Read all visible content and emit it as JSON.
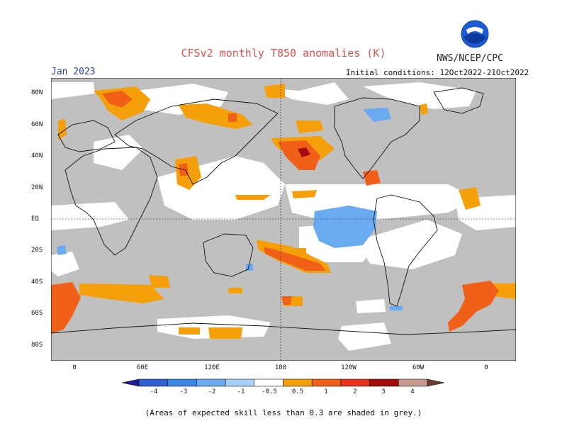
{
  "title": "CFSv2 monthly T850 anomalies (K)",
  "month": "Jan 2023",
  "agency": "NWS/NCEP/CPC",
  "initial_conditions": "Initial conditions: 12Oct2022-21Oct2022",
  "latitude_labels": [
    "80N",
    "60N",
    "40N",
    "20N",
    "EQ",
    "20S",
    "40S",
    "60S",
    "80S"
  ],
  "longitude_labels": [
    "0",
    "60E",
    "120E",
    "180",
    "120W",
    "60W",
    "0"
  ],
  "colorbar": {
    "labels": [
      "-4",
      "-3",
      "-2",
      "-1",
      "-0.5",
      "0.5",
      "1",
      "2",
      "3",
      "4"
    ],
    "colors": [
      "#1b1b9a",
      "#2e5fd1",
      "#3a86e8",
      "#6aaaf0",
      "#a8d0f8",
      "#ffffff",
      "#f5a00a",
      "#f06018",
      "#e8321a",
      "#a50c0c",
      "#c89a8f",
      "#6b3d32"
    ]
  },
  "shading": {
    "no_skill_color": "#c0c0c0",
    "warm_colors": [
      "#f5a00a",
      "#f06018",
      "#a50c0c"
    ],
    "cool_color": "#6aaaf0"
  },
  "footnote": "(Areas of expected skill less than 0.3 are shaded in grey.)"
}
